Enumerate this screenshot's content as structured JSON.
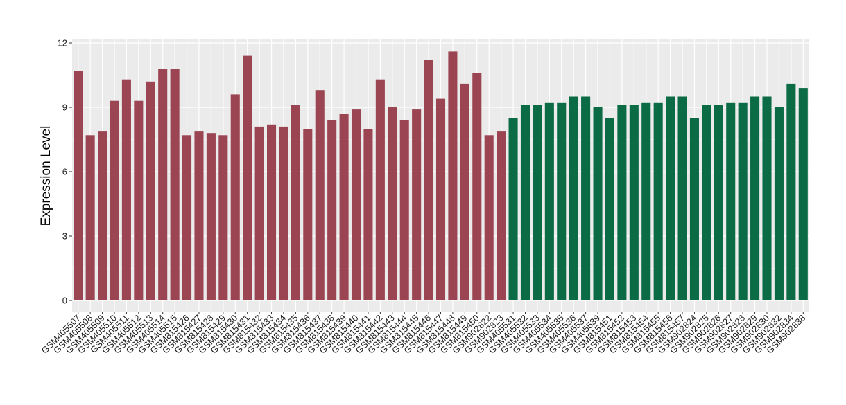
{
  "chart_data": {
    "type": "bar",
    "xlabel": "",
    "ylabel": "Expression Level",
    "ylim": [
      0,
      12
    ],
    "yticks": [
      0,
      3,
      6,
      9,
      12
    ],
    "yticks_text": [
      "0",
      "3",
      "6",
      "9",
      "12"
    ],
    "grid": true,
    "legend": "none",
    "colors": {
      "group_a": "#9b4452",
      "group_b": "#0b6b45",
      "panel_bg": "#ebebeb",
      "grid": "#ffffff"
    },
    "bars": [
      {
        "label": "GSM405507",
        "value": 10.7,
        "group": "a"
      },
      {
        "label": "GSM405508",
        "value": 7.7,
        "group": "a"
      },
      {
        "label": "GSM405509",
        "value": 7.9,
        "group": "a"
      },
      {
        "label": "GSM405510",
        "value": 9.3,
        "group": "a"
      },
      {
        "label": "GSM405511",
        "value": 10.3,
        "group": "a"
      },
      {
        "label": "GSM405512",
        "value": 9.3,
        "group": "a"
      },
      {
        "label": "GSM405513",
        "value": 10.2,
        "group": "a"
      },
      {
        "label": "GSM405514",
        "value": 10.8,
        "group": "a"
      },
      {
        "label": "GSM405515",
        "value": 10.8,
        "group": "a"
      },
      {
        "label": "GSM815426",
        "value": 7.7,
        "group": "a"
      },
      {
        "label": "GSM815427",
        "value": 7.9,
        "group": "a"
      },
      {
        "label": "GSM815428",
        "value": 7.8,
        "group": "a"
      },
      {
        "label": "GSM815429",
        "value": 7.7,
        "group": "a"
      },
      {
        "label": "GSM815430",
        "value": 9.6,
        "group": "a"
      },
      {
        "label": "GSM815431",
        "value": 11.4,
        "group": "a"
      },
      {
        "label": "GSM815432",
        "value": 8.1,
        "group": "a"
      },
      {
        "label": "GSM815433",
        "value": 8.2,
        "group": "a"
      },
      {
        "label": "GSM815434",
        "value": 8.1,
        "group": "a"
      },
      {
        "label": "GSM815435",
        "value": 9.1,
        "group": "a"
      },
      {
        "label": "GSM815436",
        "value": 8.0,
        "group": "a"
      },
      {
        "label": "GSM815437",
        "value": 9.8,
        "group": "a"
      },
      {
        "label": "GSM815438",
        "value": 8.4,
        "group": "a"
      },
      {
        "label": "GSM815439",
        "value": 8.7,
        "group": "a"
      },
      {
        "label": "GSM815440",
        "value": 8.9,
        "group": "a"
      },
      {
        "label": "GSM815441",
        "value": 8.0,
        "group": "a"
      },
      {
        "label": "GSM815442",
        "value": 10.3,
        "group": "a"
      },
      {
        "label": "GSM815443",
        "value": 9.0,
        "group": "a"
      },
      {
        "label": "GSM815444",
        "value": 8.4,
        "group": "a"
      },
      {
        "label": "GSM815445",
        "value": 8.9,
        "group": "a"
      },
      {
        "label": "GSM815446",
        "value": 11.2,
        "group": "a"
      },
      {
        "label": "GSM815447",
        "value": 9.4,
        "group": "a"
      },
      {
        "label": "GSM815448",
        "value": 11.6,
        "group": "a"
      },
      {
        "label": "GSM815449",
        "value": 10.1,
        "group": "a"
      },
      {
        "label": "GSM815450",
        "value": 10.6,
        "group": "a"
      },
      {
        "label": "GSM902822",
        "value": 7.7,
        "group": "a"
      },
      {
        "label": "GSM902823",
        "value": 7.9,
        "group": "a"
      },
      {
        "label": "GSM405531",
        "value": 8.5,
        "group": "b"
      },
      {
        "label": "GSM405532",
        "value": 9.1,
        "group": "b"
      },
      {
        "label": "GSM405533",
        "value": 9.1,
        "group": "b"
      },
      {
        "label": "GSM405534",
        "value": 9.2,
        "group": "b"
      },
      {
        "label": "GSM405535",
        "value": 9.2,
        "group": "b"
      },
      {
        "label": "GSM405536",
        "value": 9.5,
        "group": "b"
      },
      {
        "label": "GSM405537",
        "value": 9.5,
        "group": "b"
      },
      {
        "label": "GSM405539",
        "value": 9.0,
        "group": "b"
      },
      {
        "label": "GSM815451",
        "value": 8.5,
        "group": "b"
      },
      {
        "label": "GSM815452",
        "value": 9.1,
        "group": "b"
      },
      {
        "label": "GSM815453",
        "value": 9.1,
        "group": "b"
      },
      {
        "label": "GSM815454",
        "value": 9.2,
        "group": "b"
      },
      {
        "label": "GSM815455",
        "value": 9.2,
        "group": "b"
      },
      {
        "label": "GSM815456",
        "value": 9.5,
        "group": "b"
      },
      {
        "label": "GSM815457",
        "value": 9.5,
        "group": "b"
      },
      {
        "label": "GSM902824",
        "value": 8.5,
        "group": "b"
      },
      {
        "label": "GSM902825",
        "value": 9.1,
        "group": "b"
      },
      {
        "label": "GSM902826",
        "value": 9.1,
        "group": "b"
      },
      {
        "label": "GSM902827",
        "value": 9.2,
        "group": "b"
      },
      {
        "label": "GSM902828",
        "value": 9.2,
        "group": "b"
      },
      {
        "label": "GSM902829",
        "value": 9.5,
        "group": "b"
      },
      {
        "label": "GSM902830",
        "value": 9.5,
        "group": "b"
      },
      {
        "label": "GSM902832",
        "value": 9.0,
        "group": "b"
      },
      {
        "label": "GSM902834",
        "value": 10.1,
        "group": "b"
      },
      {
        "label": "GSM902838",
        "value": 9.9,
        "group": "b"
      }
    ]
  }
}
